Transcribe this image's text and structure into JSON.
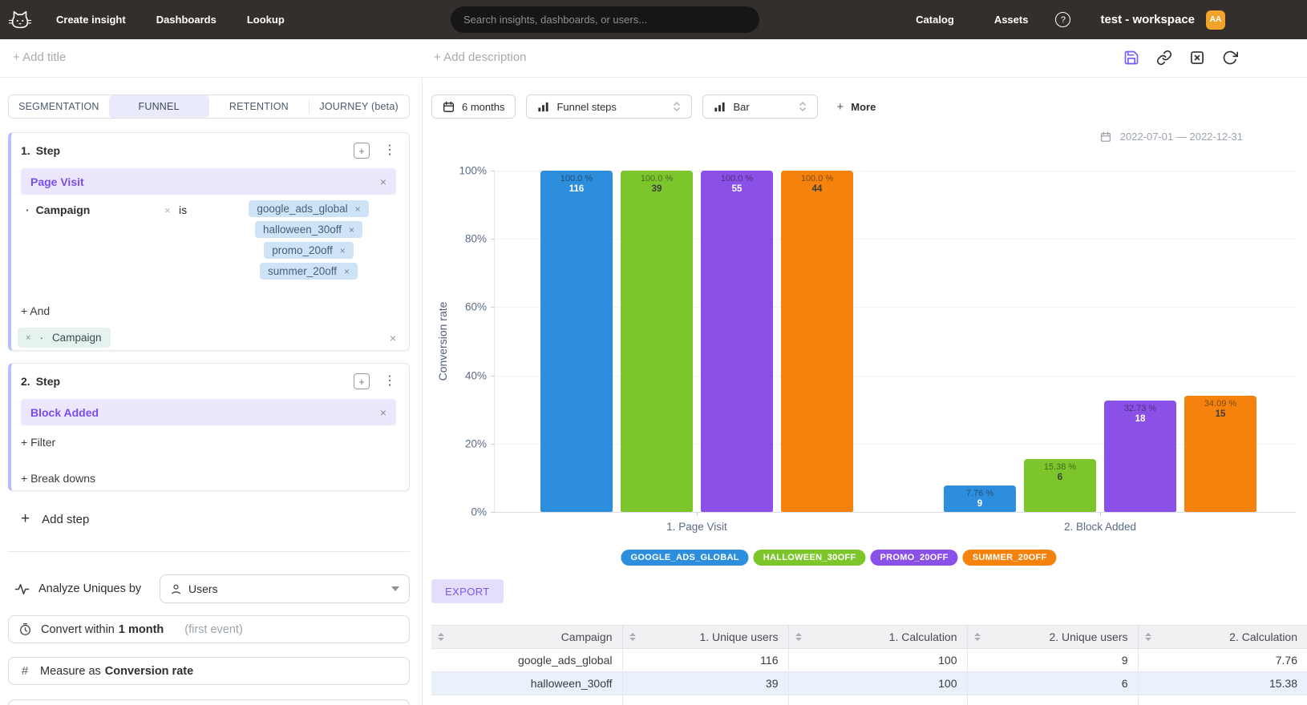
{
  "glyphs": {
    "plus": "+",
    "close": "×",
    "kebab": "⋮",
    "dot": "·",
    "question": "?"
  },
  "navbar": {
    "links": [
      {
        "label": "Create insight"
      },
      {
        "label": "Dashboards"
      },
      {
        "label": "Lookup"
      }
    ],
    "search_placeholder": "Search insights, dashboards, or users...",
    "right_links": [
      {
        "label": "Catalog"
      },
      {
        "label": "Assets"
      }
    ],
    "workspace": "test - workspace",
    "avatar_initials": "AA"
  },
  "titlebar": {
    "add_title": "+ Add title",
    "add_description": "+ Add description"
  },
  "panel": {
    "tabs": [
      {
        "label": "SEGMENTATION",
        "active": false
      },
      {
        "label": "FUNNEL",
        "active": true
      },
      {
        "label": "RETENTION",
        "active": false
      },
      {
        "label": "JOURNEY (beta)",
        "active": false
      }
    ],
    "step1": {
      "index": "1.",
      "title": "Step",
      "event": "Page Visit",
      "filter": {
        "property": "Campaign",
        "operator": "is",
        "values": [
          "google_ads_global",
          "halloween_30off",
          "promo_20off",
          "summer_20off"
        ]
      },
      "and_label": "+ And",
      "pending_property": "Campaign"
    },
    "step2": {
      "index": "2.",
      "title": "Step",
      "event": "Block Added",
      "filter_label": "+ Filter",
      "breakdown_label": "+ Break downs"
    },
    "add_step_label": "Add step",
    "analyze": {
      "label": "Analyze Uniques by",
      "value": "Users"
    },
    "convert": {
      "prefix": "Convert within",
      "value": "1 month",
      "suffix": "(first event)"
    },
    "measure": {
      "prefix": "Measure as",
      "value": "Conversion rate"
    }
  },
  "toolbar": {
    "date_button": "6 months",
    "view_select": "Funnel steps",
    "chart_select": "Bar",
    "more_label": "More",
    "date_range": "2022-07-01 — 2022-12-31"
  },
  "chart_data": {
    "type": "bar",
    "ylabel": "Conversion rate",
    "ylim": [
      0,
      100
    ],
    "yticks": [
      "100%",
      "80%",
      "60%",
      "40%",
      "20%",
      "0%"
    ],
    "grid": true,
    "legend_position": "bottom",
    "categories": [
      "1. Page Visit",
      "2. Block Added"
    ],
    "series": [
      {
        "name": "GOOGLE_ADS_GLOBAL",
        "color": "#2d8edd",
        "count_color": "#ffffff",
        "values": [
          100.0,
          7.76
        ],
        "pct_labels": [
          "100.0 %",
          "7.76 %"
        ],
        "counts": [
          "116",
          "9"
        ]
      },
      {
        "name": "HALLOWEEN_30OFF",
        "color": "#7cc62c",
        "count_color": "#3c3c3c",
        "values": [
          100.0,
          15.38
        ],
        "pct_labels": [
          "100.0 %",
          "15.38 %"
        ],
        "counts": [
          "39",
          "6"
        ]
      },
      {
        "name": "PROMO_20OFF",
        "color": "#8a50e8",
        "count_color": "#ffffff",
        "values": [
          100.0,
          32.73
        ],
        "pct_labels": [
          "100.0 %",
          "32.73 %"
        ],
        "counts": [
          "55",
          "18"
        ]
      },
      {
        "name": "SUMMER_20OFF",
        "color": "#f5820d",
        "count_color": "#3c3c3c",
        "values": [
          100.0,
          34.09
        ],
        "pct_labels": [
          "100.0 %",
          "34.09 %"
        ],
        "counts": [
          "44",
          "15"
        ]
      }
    ]
  },
  "export_label": "EXPORT",
  "table": {
    "columns": [
      "Campaign",
      "1. Unique users",
      "1. Calculation",
      "2. Unique users",
      "2. Calculation"
    ],
    "rows": [
      [
        "google_ads_global",
        "116",
        "100",
        "9",
        "7.76"
      ],
      [
        "halloween_30off",
        "39",
        "100",
        "6",
        "15.38"
      ]
    ]
  }
}
